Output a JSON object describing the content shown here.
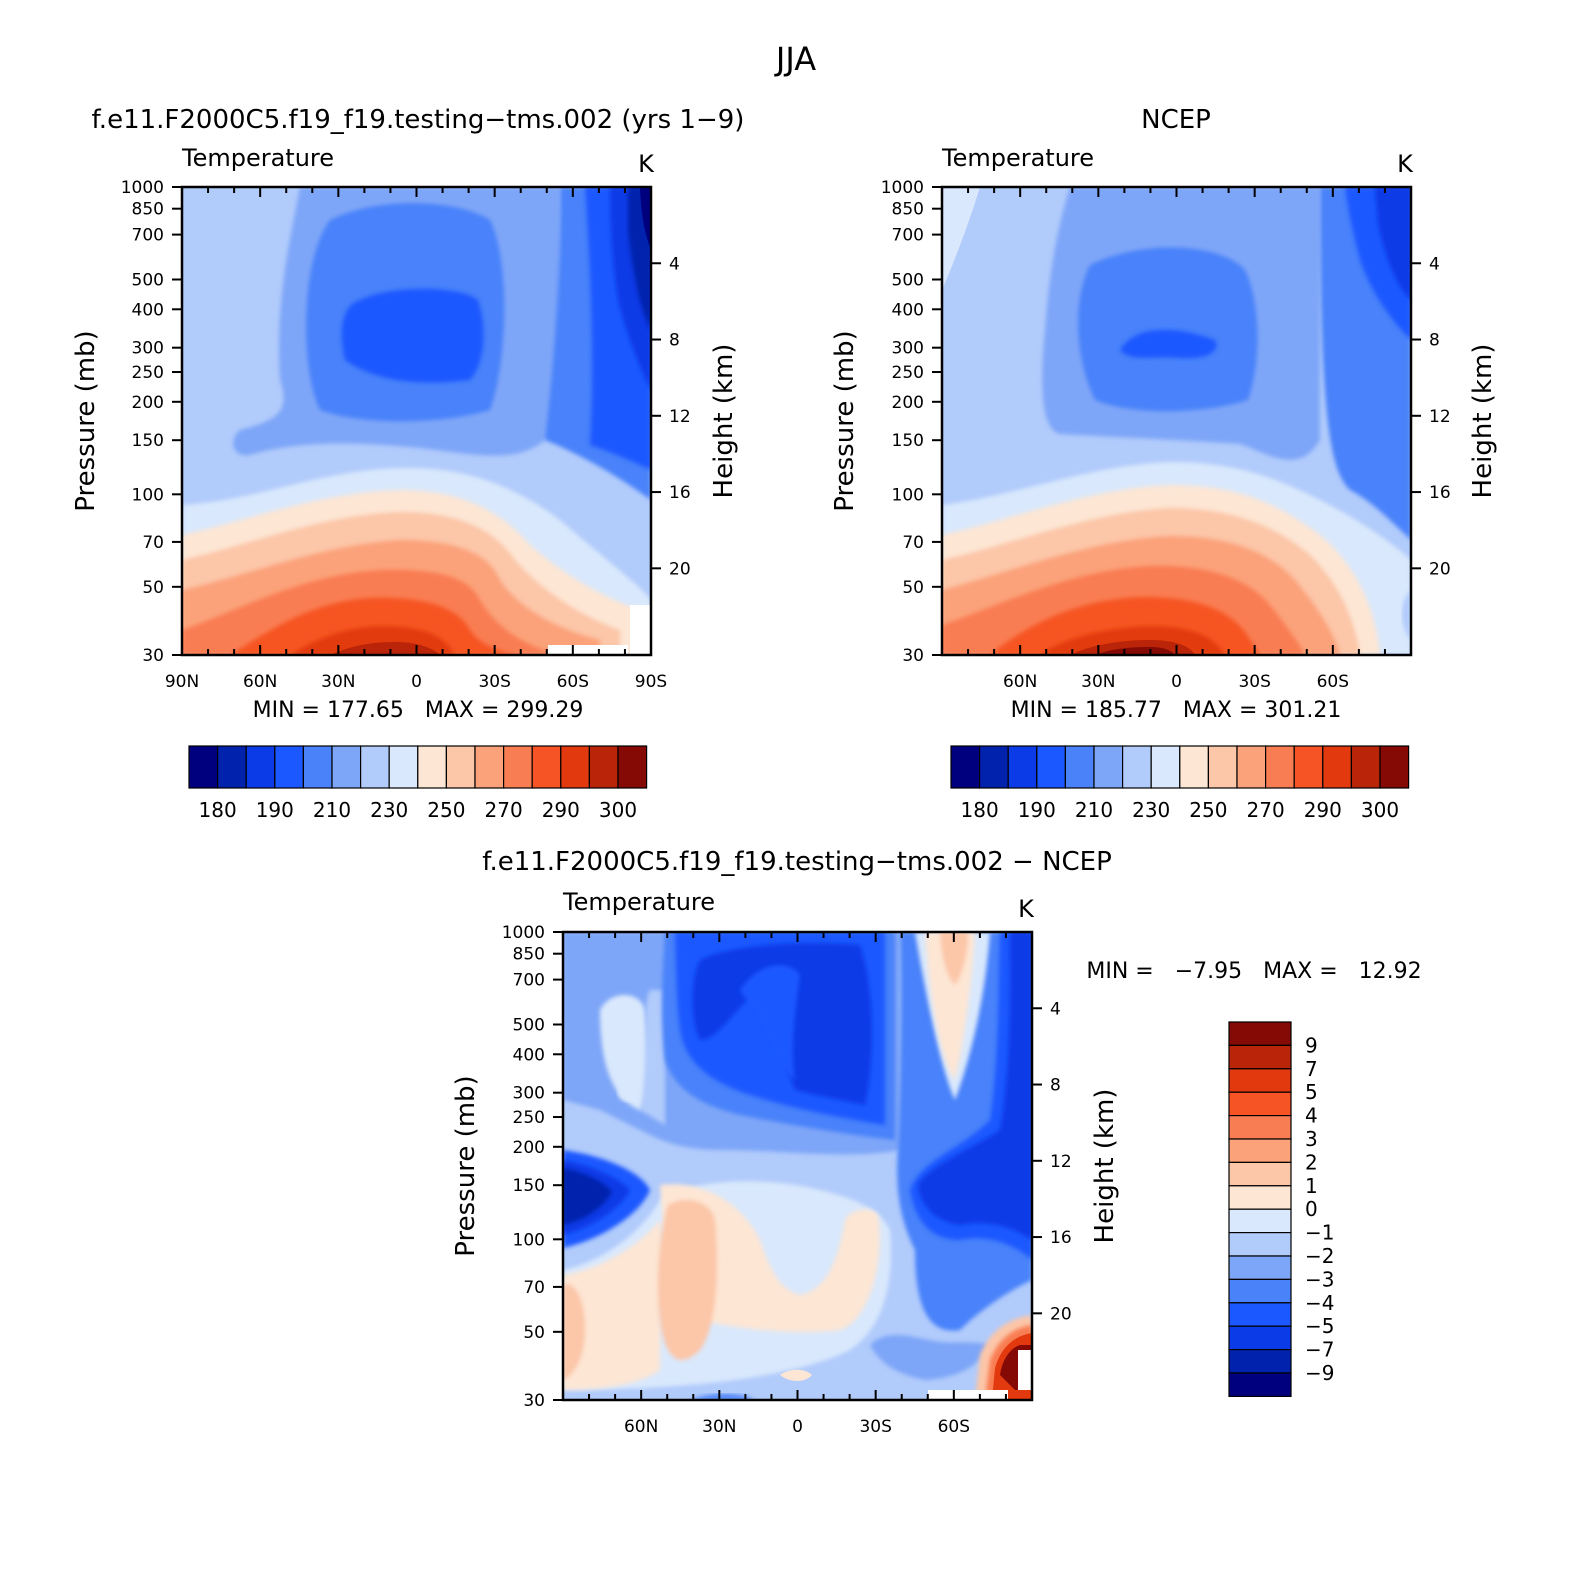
{
  "figure": {
    "title": "JJA"
  },
  "chart_data": [
    {
      "type": "heatmap",
      "title": "f.e11.F2000C5.f19_f19.testing−tms.002 (yrs 1−9)",
      "left_label": "Temperature",
      "right_label": "K",
      "xlabel": "",
      "ylabel": "Pressure (mb)",
      "y2label": "Height (km)",
      "x_tick_labels": [
        "90N",
        "60N",
        "30N",
        "0",
        "30S",
        "60S",
        "90S"
      ],
      "y_tick_labels": [
        "30",
        "50",
        "70",
        "100",
        "150",
        "200",
        "250",
        "300",
        "400",
        "500",
        "700",
        "850",
        "1000"
      ],
      "y2_tick_labels": [
        "20",
        "16",
        "12",
        "8",
        "4"
      ],
      "xlim": [
        90,
        -90
      ],
      "ylim": [
        1000,
        30
      ],
      "y_scale": "log",
      "min_max_text": "MIN = 177.65   MAX = 299.29",
      "colorbar": {
        "orientation": "horizontal",
        "labels": [
          "180",
          "190",
          "210",
          "230",
          "250",
          "270",
          "290",
          "300"
        ],
        "colors": [
          "#00007f",
          "#0022ad",
          "#0a3be6",
          "#1c58ff",
          "#4a82fa",
          "#7ea6f8",
          "#b1cbfb",
          "#d9e8fc",
          "#fde6d4",
          "#fcc6a8",
          "#fba27a",
          "#f97d52",
          "#f65424",
          "#e23a0e",
          "#ba2409",
          "#850a05"
        ]
      }
    },
    {
      "type": "heatmap",
      "title": "NCEP",
      "left_label": "Temperature",
      "right_label": "K",
      "xlabel": "",
      "ylabel": "Pressure (mb)",
      "y2label": "Height (km)",
      "x_tick_labels": [
        "60N",
        "30N",
        "0",
        "30S",
        "60S"
      ],
      "y_tick_labels": [
        "30",
        "50",
        "70",
        "100",
        "150",
        "200",
        "250",
        "300",
        "400",
        "500",
        "700",
        "850",
        "1000"
      ],
      "y2_tick_labels": [
        "20",
        "16",
        "12",
        "8",
        "4"
      ],
      "xlim": [
        90,
        -90
      ],
      "ylim": [
        1000,
        30
      ],
      "y_scale": "log",
      "min_max_text": "MIN = 185.77   MAX = 301.21",
      "colorbar": {
        "orientation": "horizontal",
        "labels": [
          "180",
          "190",
          "210",
          "230",
          "250",
          "270",
          "290",
          "300"
        ],
        "colors": [
          "#00007f",
          "#0022ad",
          "#0a3be6",
          "#1c58ff",
          "#4a82fa",
          "#7ea6f8",
          "#b1cbfb",
          "#d9e8fc",
          "#fde6d4",
          "#fcc6a8",
          "#fba27a",
          "#f97d52",
          "#f65424",
          "#e23a0e",
          "#ba2409",
          "#850a05"
        ]
      }
    },
    {
      "type": "heatmap",
      "title": "f.e11.F2000C5.f19_f19.testing−tms.002 − NCEP",
      "left_label": "Temperature",
      "right_label": "K",
      "xlabel": "",
      "ylabel": "Pressure (mb)",
      "y2label": "Height (km)",
      "x_tick_labels": [
        "60N",
        "30N",
        "0",
        "30S",
        "60S"
      ],
      "y_tick_labels": [
        "30",
        "50",
        "70",
        "100",
        "150",
        "200",
        "250",
        "300",
        "400",
        "500",
        "700",
        "850",
        "1000"
      ],
      "y2_tick_labels": [
        "20",
        "16",
        "12",
        "8",
        "4"
      ],
      "xlim": [
        90,
        -90
      ],
      "ylim": [
        1000,
        30
      ],
      "y_scale": "log",
      "min_max_text": "MIN =   −7.95   MAX =   12.92",
      "colorbar": {
        "orientation": "vertical",
        "labels": [
          "9",
          "7",
          "5",
          "4",
          "3",
          "2",
          "1",
          "0",
          "−1",
          "−2",
          "−3",
          "−4",
          "−5",
          "−7",
          "−9"
        ],
        "colors": [
          "#850a05",
          "#ba2409",
          "#e23a0e",
          "#f65424",
          "#f97d52",
          "#fba27a",
          "#fcc6a8",
          "#fde6d4",
          "#d9e8fc",
          "#b1cbfb",
          "#7ea6f8",
          "#4a82fa",
          "#1c58ff",
          "#0a3be6",
          "#0022ad",
          "#00007f"
        ]
      }
    }
  ]
}
